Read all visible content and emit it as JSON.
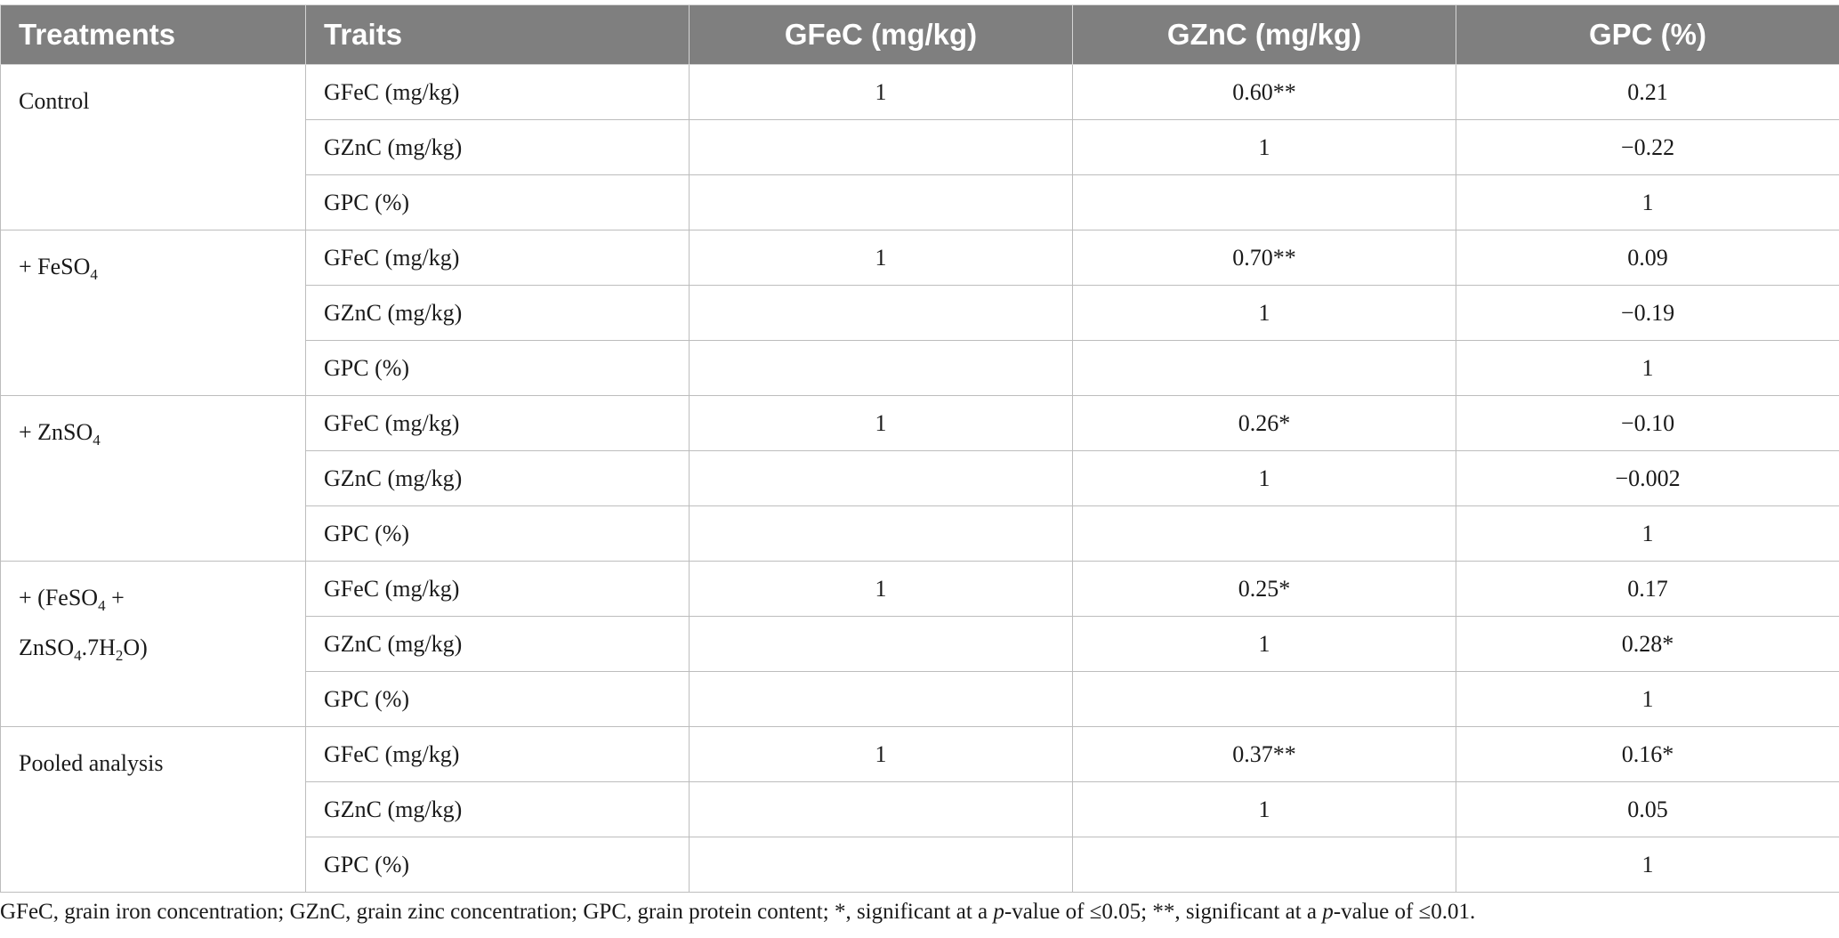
{
  "table": {
    "headers": [
      "Treatments",
      "Traits",
      "GFeC (mg/kg)",
      "GZnC (mg/kg)",
      "GPC (%)"
    ],
    "groups": [
      {
        "treatment_parts": [
          [
            "Control",
            ""
          ]
        ],
        "rows": [
          {
            "trait": "GFeC (mg/kg)",
            "gfec": "1",
            "gznc": "0.60**",
            "gpc": "0.21"
          },
          {
            "trait": "GZnC (mg/kg)",
            "gfec": "",
            "gznc": "1",
            "gpc": "−0.22"
          },
          {
            "trait": "GPC (%)",
            "gfec": "",
            "gznc": "",
            "gpc": "1"
          }
        ]
      },
      {
        "treatment_parts": [
          [
            "+ FeSO",
            ""
          ],
          [
            "4",
            "sub"
          ]
        ],
        "rows": [
          {
            "trait": "GFeC (mg/kg)",
            "gfec": "1",
            "gznc": "0.70**",
            "gpc": "0.09"
          },
          {
            "trait": "GZnC (mg/kg)",
            "gfec": "",
            "gznc": "1",
            "gpc": "−0.19"
          },
          {
            "trait": "GPC (%)",
            "gfec": "",
            "gznc": "",
            "gpc": "1"
          }
        ]
      },
      {
        "treatment_parts": [
          [
            "+ ZnSO",
            ""
          ],
          [
            "4",
            "sub"
          ]
        ],
        "rows": [
          {
            "trait": "GFeC (mg/kg)",
            "gfec": "1",
            "gznc": "0.26*",
            "gpc": "−0.10"
          },
          {
            "trait": "GZnC (mg/kg)",
            "gfec": "",
            "gznc": "1",
            "gpc": "−0.002"
          },
          {
            "trait": "GPC (%)",
            "gfec": "",
            "gznc": "",
            "gpc": "1"
          }
        ]
      },
      {
        "treatment_parts": [
          [
            "+ (FeSO",
            ""
          ],
          [
            "4",
            "sub"
          ],
          [
            " +",
            ""
          ],
          [
            "\n",
            "br"
          ],
          [
            "ZnSO",
            ""
          ],
          [
            "4",
            "sub"
          ],
          [
            ".7H",
            ""
          ],
          [
            "2",
            "sub"
          ],
          [
            "O)",
            ""
          ]
        ],
        "rows": [
          {
            "trait": "GFeC (mg/kg)",
            "gfec": "1",
            "gznc": "0.25*",
            "gpc": "0.17"
          },
          {
            "trait": "GZnC (mg/kg)",
            "gfec": "",
            "gznc": "1",
            "gpc": "0.28*"
          },
          {
            "trait": "GPC (%)",
            "gfec": "",
            "gznc": "",
            "gpc": "1"
          }
        ]
      },
      {
        "treatment_parts": [
          [
            "Pooled analysis",
            ""
          ]
        ],
        "rows": [
          {
            "trait": "GFeC (mg/kg)",
            "gfec": "1",
            "gznc": "0.37**",
            "gpc": "0.16*"
          },
          {
            "trait": "GZnC (mg/kg)",
            "gfec": "",
            "gznc": "1",
            "gpc": "0.05"
          },
          {
            "trait": "GPC (%)",
            "gfec": "",
            "gznc": "",
            "gpc": "1"
          }
        ]
      }
    ]
  },
  "footnote": {
    "part1": "GFeC, grain iron concentration; GZnC, grain zinc concentration; GPC, grain protein content; *, significant at a ",
    "p1": "p",
    "part2": "-value of ≤0.05; **, significant at a ",
    "p2": "p",
    "part3": "-value of ≤0.01."
  },
  "colors": {
    "header_bg": "#7f7f7f",
    "header_text": "#ffffff",
    "grid_line": "#bdbdbd"
  }
}
